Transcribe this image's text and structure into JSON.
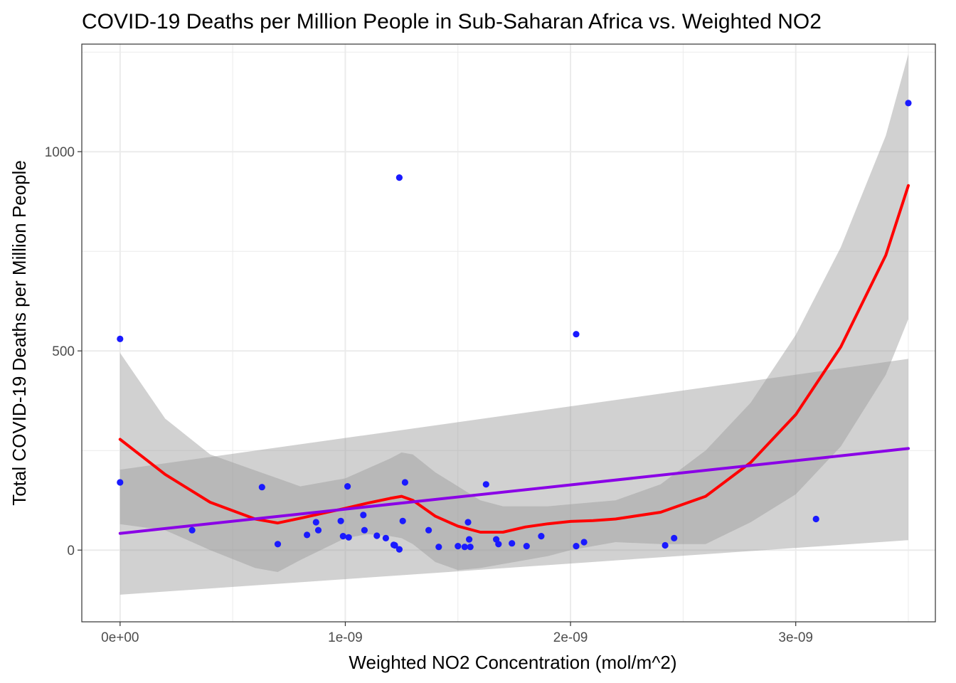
{
  "chart_data": {
    "type": "scatter",
    "title": "COVID-19 Deaths per Million People in Sub-Saharan Africa vs. Weighted NO2",
    "xlabel": "Weighted NO2 Concentration (mol/m^2)",
    "ylabel": "Total COVID-19 Deaths per Million People",
    "xlim": [
      -1.7e-10,
      3.62e-09
    ],
    "ylim": [
      -180,
      1270
    ],
    "x_ticks": [
      0,
      1e-09,
      2e-09,
      3e-09
    ],
    "x_tick_labels": [
      "0e+00",
      "1e-09",
      "2e-09",
      "3e-09"
    ],
    "x_minor_ticks": [
      5e-10,
      1.5e-09,
      2.5e-09,
      3.5e-09
    ],
    "y_ticks": [
      0,
      500,
      1000
    ],
    "y_tick_labels": [
      "0",
      "500",
      "1000"
    ],
    "y_minor_ticks": [
      250,
      750,
      1250
    ],
    "grid": true,
    "theme": "bw",
    "colors": {
      "points": "#1a1aff",
      "loess": "#ff0000",
      "linear": "#8a00e6",
      "band": "#999999",
      "grid": "#ebebeb",
      "panel_border": "#333333"
    },
    "points": [
      {
        "x": 0.0,
        "y": 530
      },
      {
        "x": 0.0,
        "y": 170
      },
      {
        "x": 3.2e-10,
        "y": 50
      },
      {
        "x": 6.3e-10,
        "y": 158
      },
      {
        "x": 7e-10,
        "y": 15
      },
      {
        "x": 8.3e-10,
        "y": 38
      },
      {
        "x": 8.7e-10,
        "y": 70
      },
      {
        "x": 8.8e-10,
        "y": 50
      },
      {
        "x": 9.8e-10,
        "y": 73
      },
      {
        "x": 9.9e-10,
        "y": 35
      },
      {
        "x": 1.01e-09,
        "y": 160
      },
      {
        "x": 1.015e-09,
        "y": 32
      },
      {
        "x": 1.08e-09,
        "y": 88
      },
      {
        "x": 1.085e-09,
        "y": 50
      },
      {
        "x": 1.14e-09,
        "y": 36
      },
      {
        "x": 1.18e-09,
        "y": 30
      },
      {
        "x": 1.215e-09,
        "y": 13
      },
      {
        "x": 1.22e-09,
        "y": 12
      },
      {
        "x": 1.24e-09,
        "y": 2
      },
      {
        "x": 1.24e-09,
        "y": 935
      },
      {
        "x": 1.255e-09,
        "y": 73
      },
      {
        "x": 1.265e-09,
        "y": 170
      },
      {
        "x": 1.37e-09,
        "y": 50
      },
      {
        "x": 1.415e-09,
        "y": 8
      },
      {
        "x": 1.5e-09,
        "y": 10
      },
      {
        "x": 1.53e-09,
        "y": 8
      },
      {
        "x": 1.545e-09,
        "y": 70
      },
      {
        "x": 1.55e-09,
        "y": 27
      },
      {
        "x": 1.555e-09,
        "y": 8
      },
      {
        "x": 1.625e-09,
        "y": 165
      },
      {
        "x": 1.67e-09,
        "y": 27
      },
      {
        "x": 1.68e-09,
        "y": 15
      },
      {
        "x": 1.74e-09,
        "y": 17
      },
      {
        "x": 1.805e-09,
        "y": 10
      },
      {
        "x": 1.87e-09,
        "y": 35
      },
      {
        "x": 2.025e-09,
        "y": 542
      },
      {
        "x": 2.025e-09,
        "y": 10
      },
      {
        "x": 2.06e-09,
        "y": 20
      },
      {
        "x": 2.42e-09,
        "y": 12
      },
      {
        "x": 2.46e-09,
        "y": 30
      },
      {
        "x": 3.09e-09,
        "y": 78
      },
      {
        "x": 3.5e-09,
        "y": 1122
      }
    ],
    "loess_fit": {
      "x": [
        0.0,
        2e-10,
        4e-10,
        6e-10,
        7e-10,
        8e-10,
        1e-09,
        1.1e-09,
        1.2e-09,
        1.25e-09,
        1.3e-09,
        1.4e-09,
        1.5e-09,
        1.6e-09,
        1.7e-09,
        1.8e-09,
        1.9e-09,
        2e-09,
        2.1e-09,
        2.2e-09,
        2.4e-09,
        2.6e-09,
        2.8e-09,
        3e-09,
        3.2e-09,
        3.4e-09,
        3.5e-09
      ],
      "y": [
        278,
        190,
        120,
        78,
        68,
        80,
        105,
        118,
        130,
        135,
        125,
        85,
        60,
        45,
        45,
        58,
        66,
        72,
        74,
        78,
        95,
        135,
        220,
        340,
        510,
        740,
        915
      ],
      "upper": [
        495,
        330,
        240,
        200,
        180,
        160,
        180,
        205,
        230,
        245,
        240,
        195,
        160,
        125,
        110,
        110,
        110,
        115,
        120,
        125,
        165,
        250,
        370,
        540,
        760,
        1040,
        1245
      ],
      "lower": [
        65,
        50,
        0,
        -45,
        -55,
        -25,
        30,
        40,
        35,
        30,
        15,
        -30,
        -50,
        -45,
        -35,
        -25,
        -15,
        0,
        10,
        20,
        15,
        15,
        70,
        140,
        260,
        440,
        580
      ]
    },
    "linear_fit": {
      "x": [
        0.0,
        3.5e-09
      ],
      "y": [
        42,
        255
      ],
      "upper": [
        202,
        480
      ],
      "lower": [
        -112,
        25
      ]
    }
  }
}
